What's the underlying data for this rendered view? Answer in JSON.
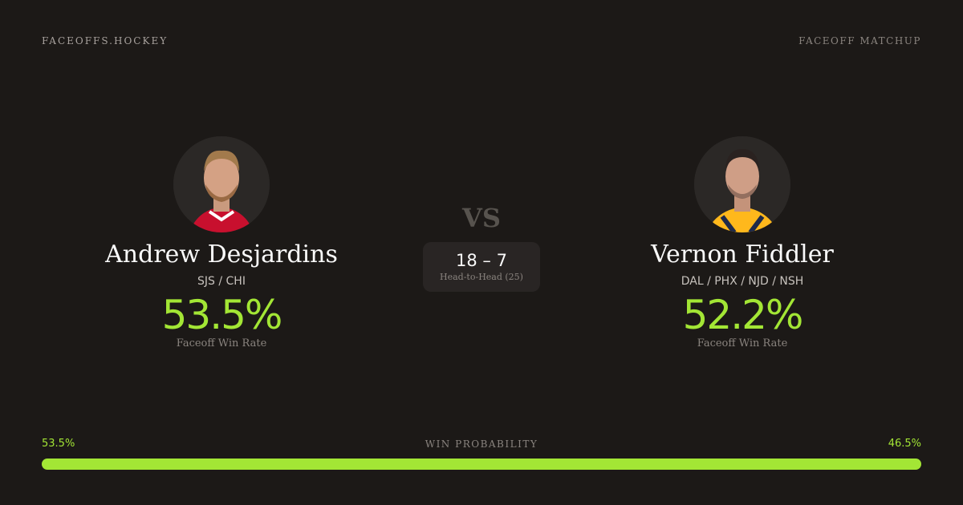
{
  "header": {
    "brand": "FACEOFFS.HOCKEY",
    "tag": "FACEOFF MATCHUP"
  },
  "players": [
    {
      "name": "Andrew Desjardins",
      "teams": "SJS / CHI",
      "win_rate": "53.5%",
      "win_rate_label": "Faceoff Win Rate",
      "jersey_color": "#c8102e"
    },
    {
      "name": "Vernon Fiddler",
      "teams": "DAL / PHX / NJD / NSH",
      "win_rate": "52.2%",
      "win_rate_label": "Faceoff Win Rate",
      "jersey_color": "#ffb81c"
    }
  ],
  "vs": "VS",
  "head_to_head": {
    "score": "18 – 7",
    "label": "Head-to-Head (25)"
  },
  "win_probability": {
    "label": "WIN PROBABILITY",
    "left": "53.5%",
    "right": "46.5%",
    "left_value": 53.5,
    "right_value": 46.5
  },
  "colors": {
    "accent": "#a3e635",
    "background": "#1c1917"
  }
}
